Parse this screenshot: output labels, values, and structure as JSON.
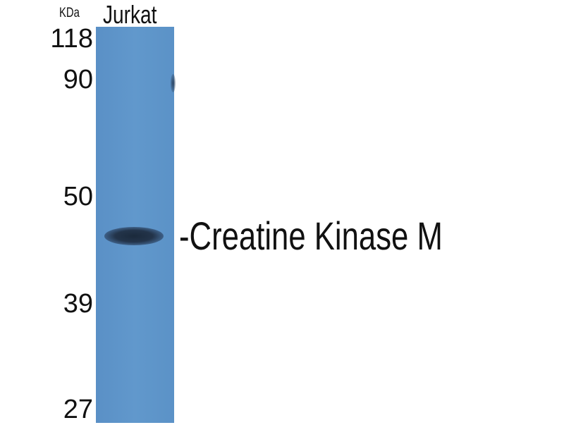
{
  "unit_label": "KDa",
  "lane_label": "Jurkat",
  "markers": [
    "118",
    "90",
    "50",
    "39",
    "27"
  ],
  "band_label": "-Creatine Kinase M",
  "colors": {
    "membrane": "#5b92c7",
    "band": "#1f2f44"
  }
}
